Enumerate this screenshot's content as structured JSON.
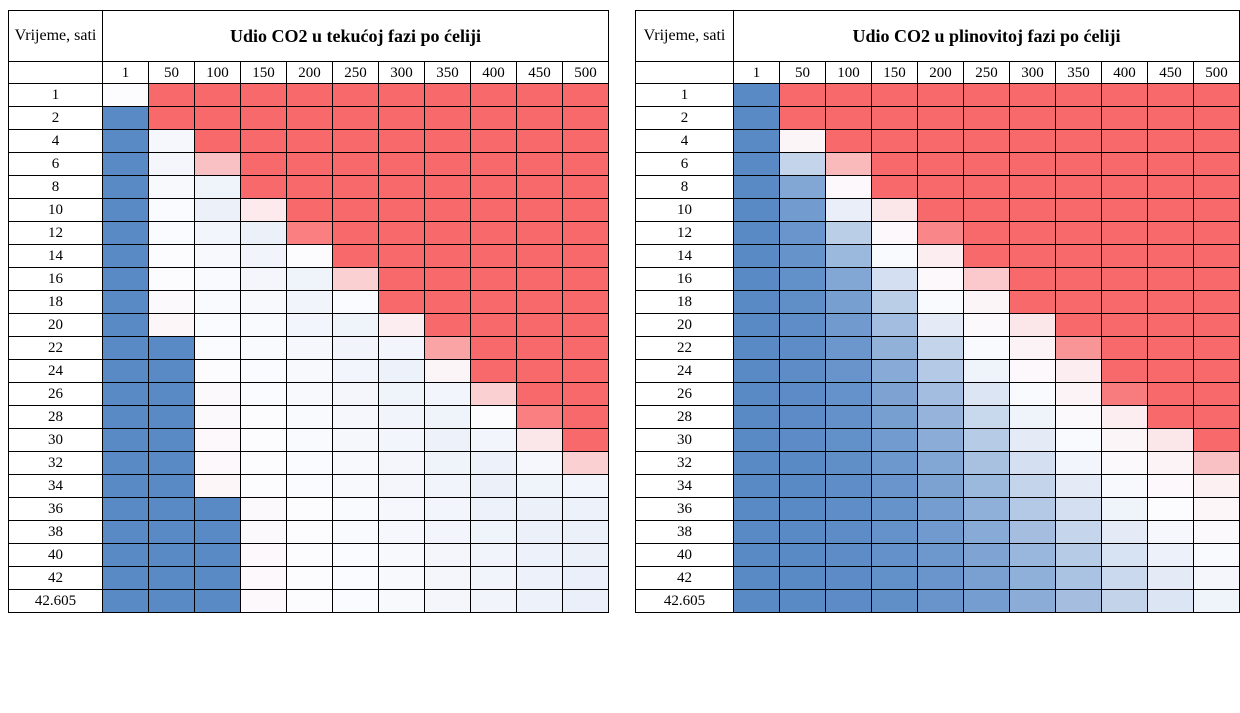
{
  "colors": {
    "high": "#f8696b",
    "mid": "#fcfcff",
    "low": "#5a8ac6"
  },
  "chart_data": [
    {
      "type": "heatmap",
      "title": "Udio CO2 u tekućoj fazi po ćeliji",
      "corner_label": "Vrijeme, sati",
      "columns": [
        "1",
        "50",
        "100",
        "150",
        "200",
        "250",
        "300",
        "350",
        "400",
        "450",
        "500"
      ],
      "rows": [
        "1",
        "2",
        "4",
        "6",
        "8",
        "10",
        "12",
        "14",
        "16",
        "18",
        "20",
        "22",
        "24",
        "26",
        "28",
        "30",
        "32",
        "34",
        "36",
        "38",
        "40",
        "42",
        "42.605"
      ],
      "values": [
        [
          0,
          100,
          100,
          100,
          100,
          100,
          100,
          100,
          100,
          100,
          100
        ],
        [
          -100,
          100,
          100,
          100,
          100,
          100,
          100,
          100,
          100,
          100,
          100
        ],
        [
          -100,
          -4,
          100,
          100,
          100,
          100,
          100,
          100,
          100,
          100,
          100
        ],
        [
          -100,
          -5,
          40,
          100,
          100,
          100,
          100,
          100,
          100,
          100,
          100
        ],
        [
          -100,
          -3,
          -8,
          100,
          100,
          100,
          100,
          100,
          100,
          100,
          100
        ],
        [
          -100,
          -1,
          -10,
          12,
          100,
          100,
          100,
          100,
          100,
          100,
          100
        ],
        [
          -100,
          -1,
          -6,
          -10,
          85,
          100,
          100,
          100,
          100,
          100,
          100
        ],
        [
          -100,
          1,
          -3,
          -7,
          0,
          100,
          100,
          100,
          100,
          100,
          100
        ],
        [
          -100,
          1,
          -2,
          -5,
          -8,
          30,
          100,
          100,
          100,
          100,
          100
        ],
        [
          -100,
          2,
          -2,
          -3,
          -7,
          -1,
          100,
          100,
          100,
          100,
          100
        ],
        [
          -100,
          4,
          -1,
          -2,
          -6,
          -8,
          10,
          100,
          100,
          100,
          100
        ],
        [
          -100,
          -100,
          -1,
          -2,
          -4,
          -7,
          -6,
          60,
          100,
          100,
          100
        ],
        [
          -100,
          -100,
          1,
          -1,
          -3,
          -6,
          -9,
          5,
          100,
          100,
          100
        ],
        [
          -100,
          -100,
          2,
          -1,
          -3,
          -5,
          -8,
          -6,
          30,
          100,
          100
        ],
        [
          -100,
          -100,
          2,
          0,
          -2,
          -4,
          -7,
          -8,
          0,
          85,
          100
        ],
        [
          -100,
          -100,
          3,
          0,
          -2,
          -4,
          -6,
          -9,
          -6,
          15,
          100
        ],
        [
          -100,
          -100,
          3,
          1,
          -1,
          -3,
          -5,
          -8,
          -9,
          -4,
          30
        ],
        [
          -100,
          -100,
          4,
          1,
          -1,
          -3,
          -5,
          -7,
          -10,
          -8,
          -6
        ],
        [
          -100,
          -100,
          -100,
          2,
          0,
          -2,
          -4,
          -6,
          -9,
          -10,
          -9
        ],
        [
          -100,
          -100,
          -100,
          2,
          0,
          -2,
          -4,
          -6,
          -8,
          -10,
          -10
        ],
        [
          -100,
          -100,
          -100,
          3,
          1,
          -1,
          -3,
          -5,
          -7,
          -9,
          -10
        ],
        [
          -100,
          -100,
          -100,
          3,
          1,
          -1,
          -3,
          -5,
          -7,
          -9,
          -11
        ],
        [
          -100,
          -100,
          -100,
          3,
          1,
          -1,
          -3,
          -5,
          -7,
          -9,
          -11
        ]
      ]
    },
    {
      "type": "heatmap",
      "title": "Udio CO2 u plinovitoj fazi po ćeliji",
      "corner_label": "Vrijeme, sati",
      "columns": [
        "1",
        "50",
        "100",
        "150",
        "200",
        "250",
        "300",
        "350",
        "400",
        "450",
        "500"
      ],
      "rows": [
        "1",
        "2",
        "4",
        "6",
        "8",
        "10",
        "12",
        "14",
        "16",
        "18",
        "20",
        "22",
        "24",
        "26",
        "28",
        "30",
        "32",
        "34",
        "36",
        "38",
        "40",
        "42",
        "42.605"
      ],
      "values": [
        [
          -100,
          100,
          100,
          100,
          100,
          100,
          100,
          100,
          100,
          100,
          100
        ],
        [
          -100,
          100,
          100,
          100,
          100,
          100,
          100,
          100,
          100,
          100,
          100
        ],
        [
          -100,
          5,
          100,
          100,
          100,
          100,
          100,
          100,
          100,
          100,
          100
        ],
        [
          -100,
          -35,
          45,
          100,
          100,
          100,
          100,
          100,
          100,
          100,
          100
        ],
        [
          -100,
          -75,
          3,
          100,
          100,
          100,
          100,
          100,
          100,
          100,
          100
        ],
        [
          -100,
          -85,
          -12,
          15,
          100,
          100,
          100,
          100,
          100,
          100,
          100
        ],
        [
          -100,
          -90,
          -40,
          3,
          80,
          100,
          100,
          100,
          100,
          100,
          100
        ],
        [
          -100,
          -92,
          -60,
          -2,
          10,
          100,
          100,
          100,
          100,
          100,
          100
        ],
        [
          -100,
          -95,
          -75,
          -25,
          3,
          35,
          100,
          100,
          100,
          100,
          100
        ],
        [
          -100,
          -96,
          -82,
          -40,
          -2,
          5,
          100,
          100,
          100,
          100,
          100
        ],
        [
          -100,
          -97,
          -86,
          -55,
          -15,
          2,
          15,
          100,
          100,
          100,
          100
        ],
        [
          -100,
          -98,
          -89,
          -66,
          -35,
          -2,
          6,
          70,
          100,
          100,
          100
        ],
        [
          -100,
          -98,
          -91,
          -72,
          -45,
          -8,
          3,
          10,
          100,
          100,
          100
        ],
        [
          -100,
          -99,
          -93,
          -78,
          -55,
          -20,
          -2,
          6,
          88,
          100,
          100
        ],
        [
          -100,
          -99,
          -94,
          -82,
          -63,
          -32,
          -8,
          2,
          10,
          100,
          100
        ],
        [
          -100,
          -99,
          -95,
          -85,
          -70,
          -43,
          -15,
          -2,
          5,
          15,
          100
        ],
        [
          -100,
          -100,
          -96,
          -88,
          -75,
          -52,
          -25,
          -6,
          2,
          6,
          40
        ],
        [
          -100,
          -100,
          -97,
          -90,
          -79,
          -60,
          -35,
          -15,
          -3,
          3,
          8
        ],
        [
          -100,
          -100,
          -97,
          -92,
          -83,
          -67,
          -45,
          -25,
          -8,
          1,
          4
        ],
        [
          -100,
          -100,
          -98,
          -93,
          -86,
          -72,
          -54,
          -34,
          -15,
          -4,
          2
        ],
        [
          -100,
          -100,
          -98,
          -94,
          -88,
          -77,
          -61,
          -43,
          -23,
          -9,
          -2
        ],
        [
          -100,
          -100,
          -99,
          -95,
          -90,
          -81,
          -67,
          -50,
          -31,
          -15,
          -5
        ],
        [
          -100,
          -100,
          -99,
          -96,
          -91,
          -83,
          -70,
          -54,
          -36,
          -20,
          -8
        ]
      ]
    }
  ]
}
